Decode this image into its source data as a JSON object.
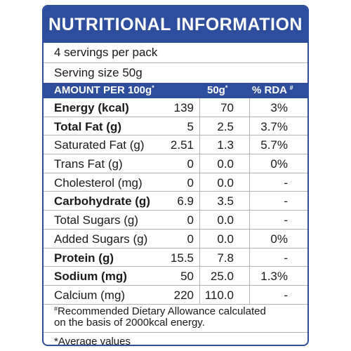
{
  "title": "NUTRITIONAL INFORMATION",
  "servings_per_pack": "4 servings per pack",
  "serving_size": "Serving size 50g",
  "headers": {
    "amount": "AMOUNT PER 100g",
    "amount_mark": "*",
    "serving": "50g",
    "serving_mark": "*",
    "rda": "% RDA",
    "rda_mark": "#"
  },
  "rows": [
    {
      "name": "Energy (kcal)",
      "per100": "139",
      "serving": "70",
      "rda": "3%",
      "bold": true
    },
    {
      "name": "Total Fat (g)",
      "per100": "5",
      "serving": "2.5",
      "rda": "3.7%",
      "bold": true
    },
    {
      "name": "Saturated Fat (g)",
      "per100": "2.51",
      "serving": "1.3",
      "rda": "5.7%",
      "bold": false
    },
    {
      "name": "Trans Fat (g)",
      "per100": "0",
      "serving": "0.0",
      "rda": "0%",
      "bold": false
    },
    {
      "name": "Cholesterol (mg)",
      "per100": "0",
      "serving": "0.0",
      "rda": "-",
      "bold": false
    },
    {
      "name": "Carbohydrate (g)",
      "per100": "6.9",
      "serving": "3.5",
      "rda": "-",
      "bold": true
    },
    {
      "name": "Total Sugars (g)",
      "per100": "0",
      "serving": "0.0",
      "rda": "-",
      "bold": false
    },
    {
      "name": "Added Sugars (g)",
      "per100": "0",
      "serving": "0.0",
      "rda": "0%",
      "bold": false
    },
    {
      "name": "Protein (g)",
      "per100": "15.5",
      "serving": "7.8",
      "rda": "-",
      "bold": true
    },
    {
      "name": "Sodium (mg)",
      "per100": "50",
      "serving": "25.0",
      "rda": "1.3%",
      "bold": true
    },
    {
      "name": "Calcium (mg)",
      "per100": "220",
      "serving": "110.0",
      "rda": "-",
      "bold": false
    }
  ],
  "footnote": {
    "mark": "#",
    "line1": "Recommended Dietary Allowance calculated",
    "line2": "on the basis of 2000kcal energy."
  },
  "average_note": "*Average values",
  "colors": {
    "brand_blue": "#2e4d9c",
    "divider": "#b4b4b4",
    "text": "#1a1a1a"
  }
}
